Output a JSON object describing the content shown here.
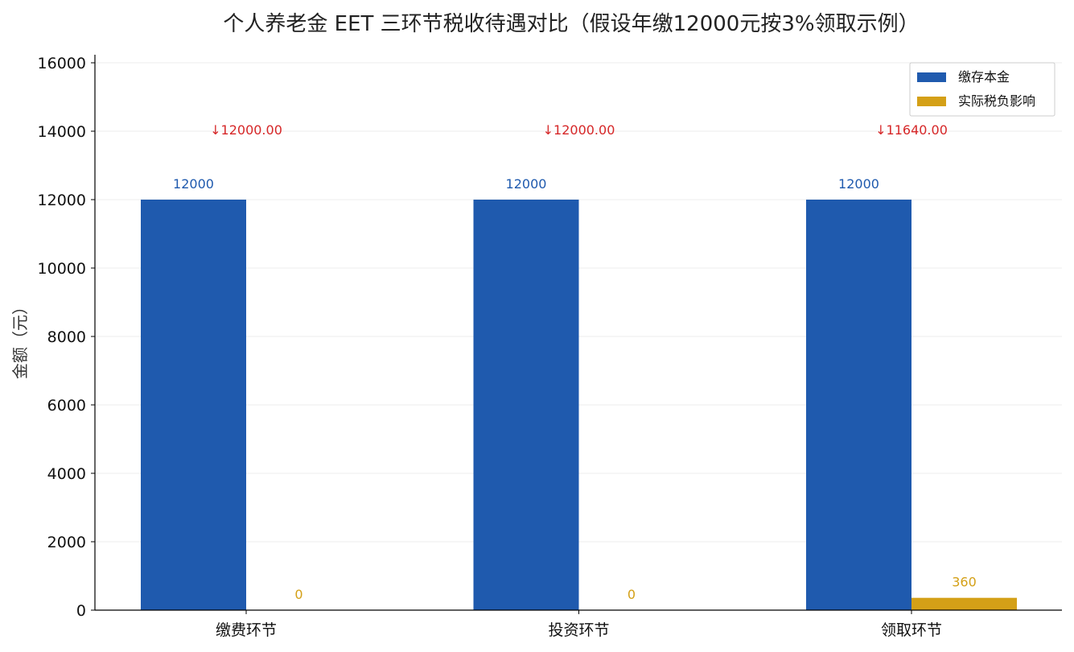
{
  "chart_data": {
    "type": "bar",
    "title": "个人养老金 EET 三环节税收待遇对比（假设年缴12000元按3%领取示例）",
    "xlabel": "",
    "ylabel": "金额（元）",
    "ylim": [
      0,
      16000
    ],
    "yticks": [
      0,
      2000,
      4000,
      6000,
      8000,
      10000,
      12000,
      14000,
      16000
    ],
    "grid": true,
    "legend_position": "top-right",
    "categories": [
      "缴费环节",
      "投资环节",
      "领取环节"
    ],
    "series": [
      {
        "name": "缴存本金",
        "values": [
          12000,
          12000,
          12000
        ],
        "labels": [
          "12000",
          "12000",
          "12000"
        ],
        "color": "#1f5aae"
      },
      {
        "name": "实际税负影响",
        "values": [
          0,
          0,
          360
        ],
        "labels": [
          "0",
          "0",
          "360"
        ],
        "color": "#d4a017"
      }
    ],
    "annotations": [
      {
        "text": "↓12000.00",
        "y": 14000,
        "color": "#d62728"
      },
      {
        "text": "↓12000.00",
        "y": 14000,
        "color": "#d62728"
      },
      {
        "text": "↓11640.00",
        "y": 14000,
        "color": "#d62728"
      }
    ]
  }
}
